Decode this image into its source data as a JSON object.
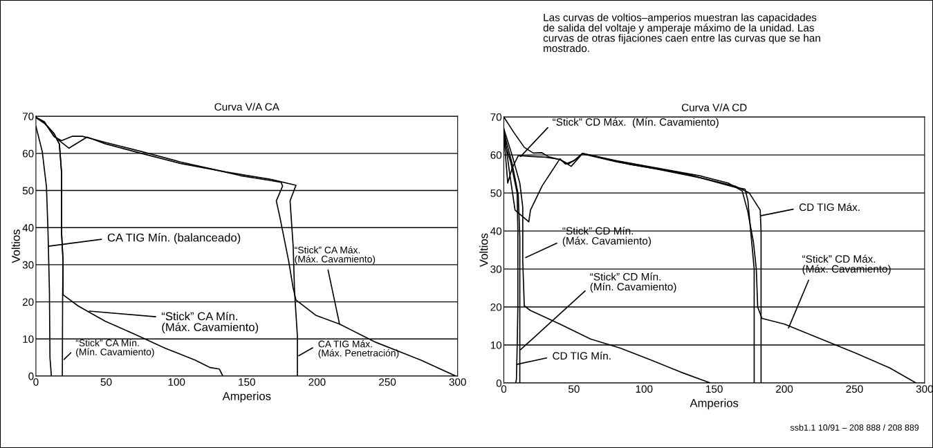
{
  "chart_data": [
    {
      "type": "line",
      "title": "Curva V/A CA",
      "xlabel": "Amperios",
      "ylabel": "Voltios",
      "xlim": [
        0,
        300
      ],
      "xticks": [
        0,
        50,
        100,
        150,
        200,
        250,
        300
      ],
      "ylim": [
        0,
        70
      ],
      "yticks": [
        0,
        10,
        20,
        30,
        40,
        50,
        60,
        70
      ],
      "grid": "y",
      "series": [
        {
          "color": "#000000",
          "x": [
            0,
            4.5,
            7.5,
            8.6,
            9.6,
            10,
            11
          ],
          "values": [
            67.3,
            60.5,
            51,
            39,
            23,
            5,
            0
          ]
        },
        {
          "color": "#000000",
          "x": [
            0,
            6.4,
            12.8,
            16.7,
            18.2,
            18.2,
            19.3,
            19,
            18.8
          ],
          "values": [
            69.7,
            68,
            65.4,
            62.5,
            55,
            39,
            31,
            22,
            0
          ]
        },
        {
          "color": "#000000",
          "x": [
            0,
            6.4,
            12.8,
            16.7,
            18.2,
            18.2,
            19.3,
            19.3,
            30,
            49.2,
            70.6,
            92,
            113.4,
            124,
            130.5,
            133
          ],
          "values": [
            69.7,
            68,
            65.4,
            62.5,
            55,
            39,
            31,
            21.9,
            18.9,
            14.8,
            11.2,
            7.5,
            4.3,
            2.3,
            1.9,
            0
          ]
        },
        {
          "color": "#000000",
          "x": [
            0,
            6,
            12.8,
            18.2,
            25.7,
            33,
            49,
            75,
            102.7,
            125,
            145.5,
            165,
            174.4,
            175.5,
            171,
            173.4,
            179.8,
            183,
            185,
            199,
            216,
            241.8,
            274,
            298.7
          ],
          "values": [
            69.7,
            68.5,
            64.6,
            63.4,
            64.6,
            64.6,
            63,
            60.5,
            57.7,
            55.8,
            54,
            52.8,
            52.2,
            51.2,
            47.2,
            43.1,
            31,
            23.7,
            20.5,
            16.4,
            14,
            9.1,
            4.3,
            0
          ]
        },
        {
          "color": "#000000",
          "x": [
            0,
            6,
            12.8,
            23.5,
            36.4,
            49.2,
            75,
            102.7,
            135,
            167,
            185,
            180.8,
            183,
            184,
            186,
            186
          ],
          "values": [
            69.7,
            68.5,
            64.6,
            61.4,
            64.4,
            62.6,
            60,
            57.3,
            55,
            53,
            51.4,
            47.2,
            35,
            22.6,
            10.8,
            0
          ]
        }
      ],
      "annotations": [
        {
          "text": "CA TIG Mín. (balanceado)",
          "x": 9,
          "y": 35
        },
        {
          "text": "“Stick” CA Mín.\n(Máx. Cavamiento)",
          "x": 38,
          "y": 17.5
        },
        {
          "text": "“Stick” CA Mín.\n(Mín. Cavamiento)",
          "x": 20,
          "y": 4.5
        },
        {
          "text": "“Stick” CA Máx.\n(Máx. Cavamiento)",
          "x": 216,
          "y": 14
        },
        {
          "text": "CA TIG Máx.\n(Máx. Penetración)",
          "x": 187,
          "y": 5.5
        }
      ]
    },
    {
      "type": "line",
      "title": "Curva V/A CD",
      "xlabel": "Amperios",
      "ylabel": "Voltios",
      "xlim": [
        0,
        300
      ],
      "xticks": [
        0,
        50,
        100,
        150,
        200,
        250,
        300
      ],
      "ylim": [
        0,
        70
      ],
      "yticks": [
        0,
        10,
        20,
        30,
        40,
        50,
        60,
        70
      ],
      "grid": "y",
      "series": [
        {
          "color": "#000000",
          "x": [
            0,
            6,
            11.4,
            13.5,
            13.5,
            14.6,
            18.9,
            40,
            61.7,
            83,
            104.6,
            126,
            147.4
          ],
          "values": [
            66.9,
            59.8,
            52.6,
            46.3,
            32,
            20.3,
            19.1,
            15.5,
            11.6,
            9.2,
            6.1,
            2.9,
            0
          ]
        },
        {
          "color": "#000000",
          "x": [
            0,
            6,
            10.3,
            11.4,
            11.4,
            11.4
          ],
          "values": [
            66,
            57.6,
            49.5,
            38.4,
            20.3,
            0
          ]
        },
        {
          "color": "#000000",
          "x": [
            0,
            5,
            9.5,
            10,
            10,
            9.6,
            9,
            8.5
          ],
          "values": [
            64,
            58,
            50,
            40,
            20,
            11,
            1,
            0
          ]
        },
        {
          "color": "#000000",
          "x": [
            0,
            3.9,
            8,
            17.8,
            19,
            27.4,
            40,
            44,
            50,
            56,
            70,
            90,
            110,
            130,
            150,
            165,
            172,
            174,
            176,
            178.5,
            178.5
          ],
          "values": [
            66.9,
            55.8,
            45.5,
            42.4,
            45.5,
            51.9,
            59,
            57.6,
            58.5,
            60.4,
            59.2,
            57.5,
            56.3,
            55,
            53,
            51.5,
            51,
            48,
            40,
            30,
            0
          ]
        },
        {
          "color": "#000000",
          "x": [
            0,
            7,
            14.6,
            21,
            27,
            32,
            40,
            46,
            52,
            56,
            80,
            110,
            140,
            160,
            170,
            174,
            178,
            180,
            181,
            184,
            200,
            220,
            250,
            275,
            294
          ],
          "values": [
            70,
            66,
            62,
            60.5,
            60.6,
            59.5,
            58.8,
            57.6,
            59,
            60.4,
            58.5,
            56.5,
            54.5,
            52.6,
            50.5,
            45,
            37,
            30,
            20,
            17,
            15.5,
            12.5,
            8,
            4,
            0
          ]
        },
        {
          "color": "#000000",
          "x": [
            0,
            2.8,
            6,
            10.3,
            20,
            30,
            40,
            48,
            56,
            80,
            110,
            140,
            165,
            175,
            182.8,
            183.4,
            183.4
          ],
          "values": [
            65.3,
            52.6,
            56.6,
            59.8,
            59.6,
            59.4,
            58.8,
            57,
            60.3,
            58.2,
            56.2,
            54,
            51.8,
            50,
            45.5,
            40,
            0
          ]
        }
      ],
      "annotations": [
        {
          "text": "“Stick” CD Máx.  (Mín. Cavamiento)",
          "x": 12,
          "y": 59.6
        },
        {
          "text": "“Stick” CD Mín.\n(Máx. Cavamiento)",
          "x": 15.6,
          "y": 33
        },
        {
          "text": "“Stick” CD Mín.\n(Mín. Cavamiento)",
          "x": 12,
          "y": 8.8
        },
        {
          "text": "CD TIG Mín.",
          "x": 9.2,
          "y": 4.9
        },
        {
          "text": "CD TIG Máx.",
          "x": 183,
          "y": 44
        },
        {
          "text": "“Stick” CD Máx.\n(Máx. Cavamiento)",
          "x": 203,
          "y": 14.5
        },
        "Las curvas de voltios–amperios muestran las capacidades\nde salida del voltaje y amperaje máximo de la unidad. Las\ncurvas de otras fijaciones caen entre las curvas que se han\nmostrado.",
        "ssb1.1 10/91 – 208 888 / 208 889"
      ]
    }
  ]
}
